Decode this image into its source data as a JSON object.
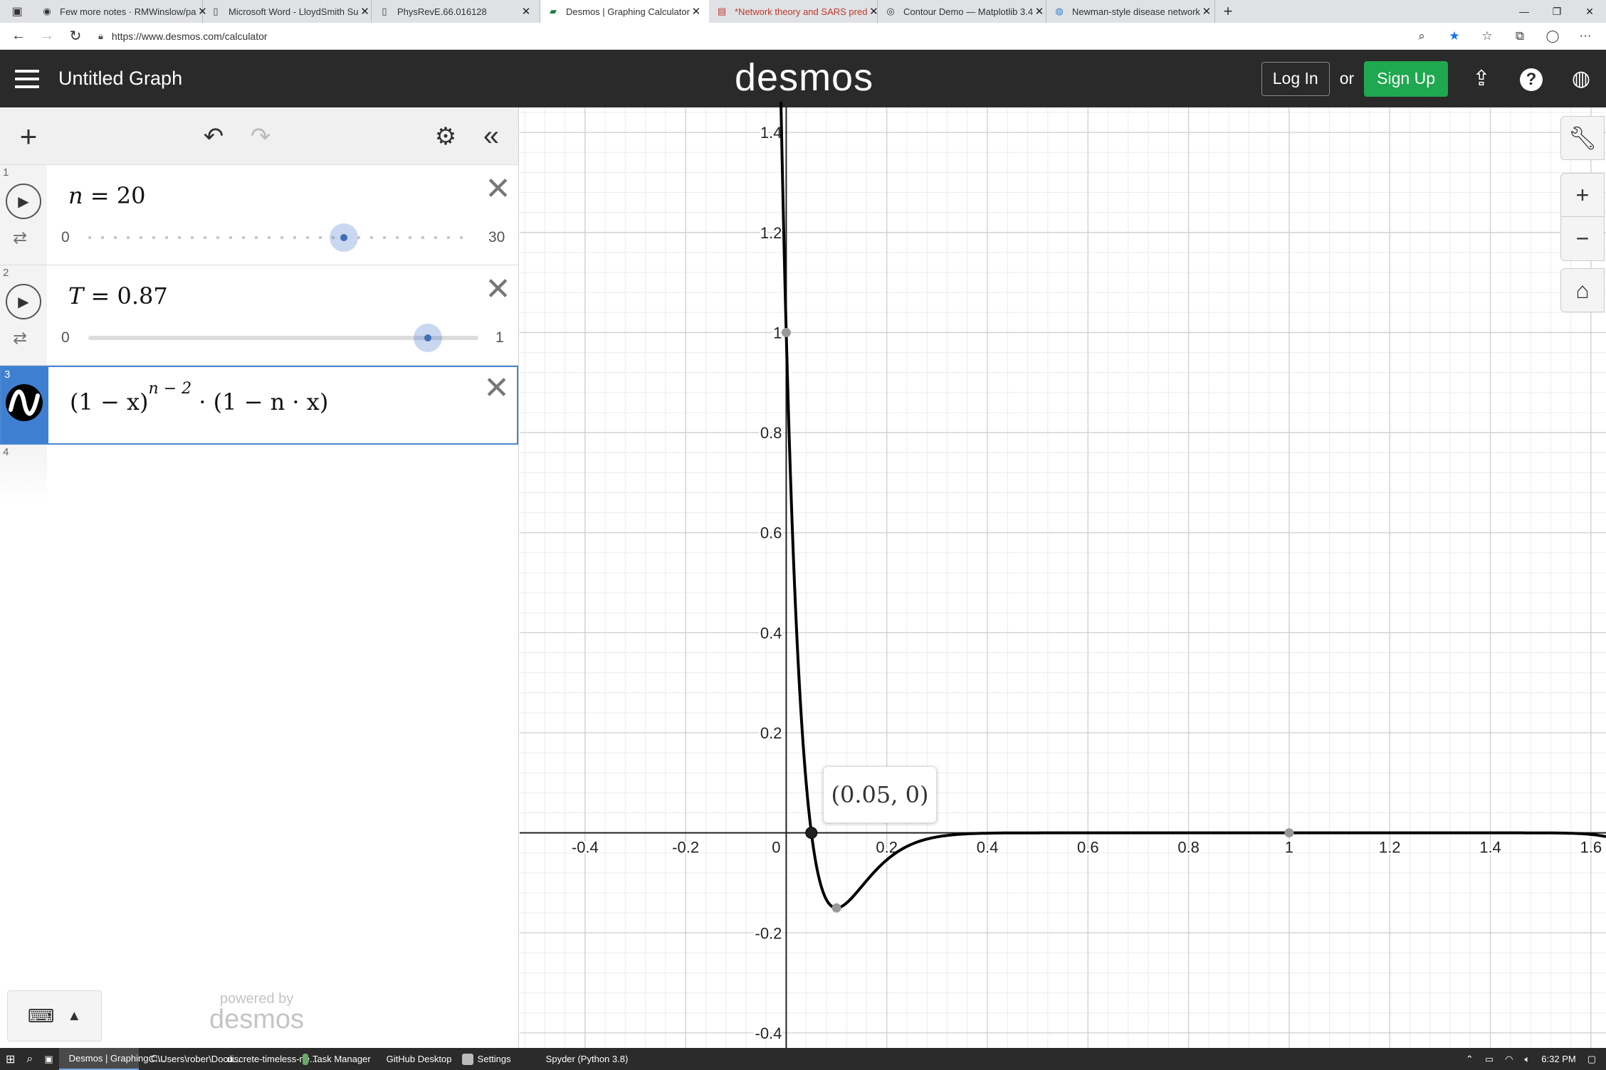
{
  "browser": {
    "tabs": [
      {
        "label": "Few more notes · RMWinslow/pa",
        "icon": "github-icon"
      },
      {
        "label": "Microsoft Word - LloydSmith Su",
        "icon": "document-icon"
      },
      {
        "label": "PhysRevE.66.016128",
        "icon": "document-icon"
      },
      {
        "label": "Desmos | Graphing Calculator",
        "icon": "desmos-icon"
      },
      {
        "label": "*Network theory and SARS pred",
        "icon": "pdf-icon"
      },
      {
        "label": "Contour Demo — Matplotlib 3.4",
        "icon": "matplotlib-icon"
      },
      {
        "label": "Newman-style disease network",
        "icon": "globe-icon"
      }
    ],
    "active_tab": 3,
    "url": "https://www.desmos.com/calculator"
  },
  "header": {
    "title": "Untitled Graph",
    "logo": "desmos",
    "login_label": "Log In",
    "or_label": "or",
    "signup_label": "Sign Up",
    "signup_color": "#1fa84f"
  },
  "expressions": [
    {
      "index": "1",
      "var": "n",
      "value": "20",
      "slider": {
        "min": "0",
        "max": "30",
        "fraction": 0.6667
      }
    },
    {
      "index": "2",
      "var": "T",
      "value": "0.87",
      "slider": {
        "min": "0",
        "max": "1",
        "fraction": 0.87
      }
    },
    {
      "index": "3",
      "latex_parts": {
        "base": "(1 − x)",
        "exponent": "n − 2",
        "tail": "· (1 − n · x)"
      }
    },
    {
      "index": "4"
    }
  ],
  "powered_by": {
    "small": "powered by",
    "brand": "desmos"
  },
  "graph": {
    "x_range": [
      -0.53,
      1.63
    ],
    "y_range": [
      -0.43,
      1.45
    ],
    "x_ticks": [
      "-0.4",
      "-0.2",
      "0",
      "0.2",
      "0.4",
      "0.6",
      "0.8",
      "1",
      "1.2",
      "1.4",
      "1.6"
    ],
    "y_ticks": [
      "1.4",
      "1.2",
      "1",
      "0.8",
      "0.6",
      "0.4",
      "0.2",
      "-0.2",
      "-0.4"
    ],
    "curve": {
      "function": "(1-x)^(n-2)*(1-n*x)",
      "n": 20,
      "color": "#000000"
    },
    "points": [
      {
        "x": 0,
        "y": 1
      },
      {
        "x": 0.05,
        "y": 0
      },
      {
        "x": 0.1,
        "y": -0.1501
      },
      {
        "x": 1,
        "y": 0
      }
    ],
    "tooltip": "(0.05, 0)"
  },
  "taskbar": {
    "items": [
      {
        "label": "Desmos | Graphing C...",
        "color": "#3b86d6",
        "active": true
      },
      {
        "label": "C:\\Users\\rober\\Docu...",
        "color": "#e3b341",
        "active": false
      },
      {
        "label": "discrete-timeless-ne...",
        "color": "#2f7fd6",
        "active": false
      },
      {
        "label": "Task Manager",
        "color": "#6aa86a",
        "active": false
      },
      {
        "label": "GitHub Desktop",
        "color": "#8a5bd6",
        "active": false
      },
      {
        "label": "Settings",
        "color": "#bbbbbb",
        "active": false
      },
      {
        "label": "Spyder (Python 3.8)",
        "color": "#c0392b",
        "active": false
      }
    ],
    "clock": "6:32 PM"
  }
}
